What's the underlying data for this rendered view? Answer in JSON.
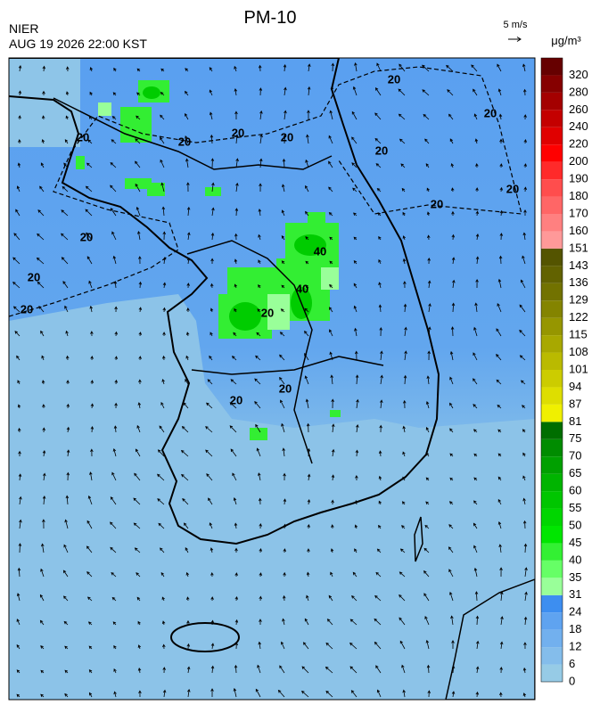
{
  "header": {
    "title": "PM-10",
    "agency": "NIER",
    "datetime": "AUG 19 2026 22:00 KST",
    "wind_scale": "5 m/s",
    "unit": "μg/m³"
  },
  "map": {
    "contour_labels": [
      "20",
      "20",
      "20",
      "20",
      "20",
      "20",
      "20",
      "20",
      "20",
      "20",
      "20",
      "20",
      "40",
      "40",
      "20",
      "20",
      "20"
    ]
  },
  "colorbar": {
    "ticks": [
      0,
      6,
      12,
      18,
      24,
      31,
      35,
      40,
      45,
      50,
      55,
      60,
      65,
      70,
      75,
      81,
      87,
      94,
      101,
      108,
      115,
      122,
      129,
      136,
      143,
      151,
      160,
      170,
      180,
      190,
      200,
      220,
      240,
      260,
      280,
      320
    ],
    "colors": [
      "#96cbe6",
      "#84bdeb",
      "#72b0ee",
      "#5fa3f0",
      "#3d8ef0",
      "#99ff99",
      "#66ff66",
      "#33f033",
      "#00e600",
      "#00d600",
      "#00c600",
      "#00b400",
      "#00a000",
      "#008c00",
      "#006e00",
      "#f0f000",
      "#dede00",
      "#cccc00",
      "#baba00",
      "#a8a800",
      "#969600",
      "#848400",
      "#727200",
      "#626200",
      "#545400",
      "#ff9999",
      "#ff8080",
      "#ff6666",
      "#ff4d4d",
      "#ff2a2a",
      "#ff0000",
      "#e00000",
      "#c40000",
      "#a40000",
      "#860000",
      "#660000"
    ]
  }
}
